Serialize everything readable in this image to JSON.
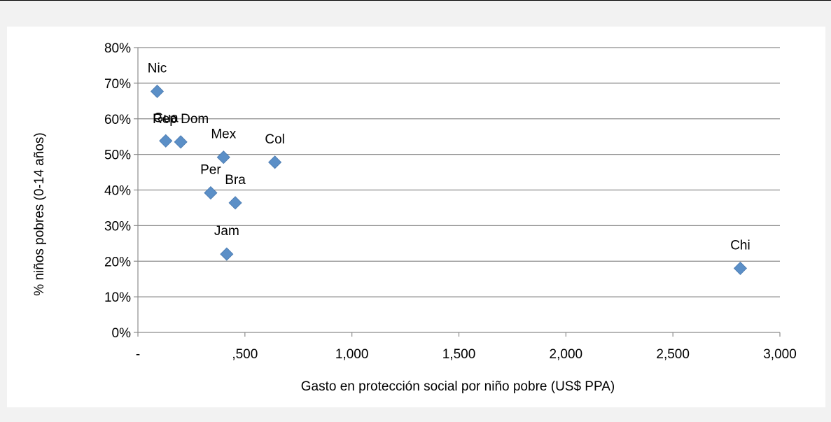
{
  "chart_data": {
    "type": "scatter",
    "xlabel": "Gasto en protección social por niño pobre (US$ PPA)",
    "ylabel": "% niños pobres (0-14 años)",
    "xlim": [
      0,
      3000
    ],
    "ylim": [
      0,
      0.8
    ],
    "x_ticks": [
      0,
      500,
      1000,
      1500,
      2000,
      2500,
      3000
    ],
    "x_tick_labels": [
      "-",
      ",500",
      "1,000",
      "1,500",
      "2,000",
      "2,500",
      "3,000"
    ],
    "y_ticks": [
      0,
      0.1,
      0.2,
      0.3,
      0.4,
      0.5,
      0.6,
      0.7,
      0.8
    ],
    "y_tick_labels": [
      "0%",
      "10%",
      "20%",
      "30%",
      "40%",
      "50%",
      "60%",
      "70%",
      "80%"
    ],
    "grid": "horizontal",
    "marker": "diamond",
    "color": "#5b8fc7",
    "points": [
      {
        "label": "Nic",
        "x": 90,
        "y": 0.677
      },
      {
        "label": "Gua",
        "x": 130,
        "y": 0.538
      },
      {
        "label": "Rep Dom",
        "x": 200,
        "y": 0.535
      },
      {
        "label": "Mex",
        "x": 400,
        "y": 0.492
      },
      {
        "label": "Col",
        "x": 640,
        "y": 0.478
      },
      {
        "label": "Per",
        "x": 340,
        "y": 0.392
      },
      {
        "label": "Bra",
        "x": 455,
        "y": 0.364
      },
      {
        "label": "Jam",
        "x": 415,
        "y": 0.22
      },
      {
        "label": "Chi",
        "x": 2815,
        "y": 0.18
      }
    ]
  }
}
